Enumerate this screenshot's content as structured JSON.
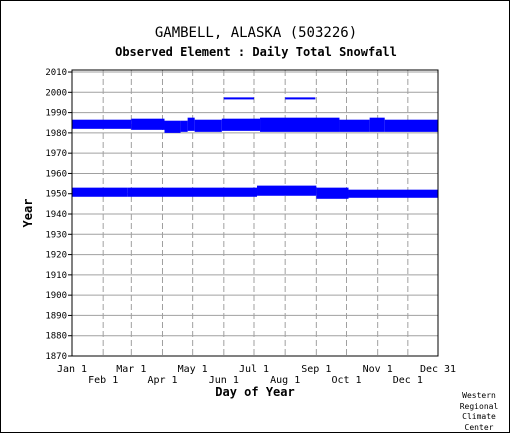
{
  "chart_data": {
    "type": "bar",
    "title": "GAMBELL, ALASKA   (503226)",
    "subtitle": "Observed Element : Daily Total Snowfall",
    "xlabel": "Day of Year",
    "ylabel": "Year",
    "xlim": [
      1,
      365
    ],
    "ylim": [
      1870,
      2011
    ],
    "x_ticks": [
      {
        "label": "Jan 1",
        "day": 1,
        "row": 0
      },
      {
        "label": "Feb 1",
        "day": 32,
        "row": 1
      },
      {
        "label": "Mar 1",
        "day": 60,
        "row": 0
      },
      {
        "label": "Apr 1",
        "day": 91,
        "row": 1
      },
      {
        "label": "May 1",
        "day": 121,
        "row": 0
      },
      {
        "label": "Jun 1",
        "day": 152,
        "row": 1
      },
      {
        "label": "Jul 1",
        "day": 182,
        "row": 0
      },
      {
        "label": "Aug 1",
        "day": 213,
        "row": 1
      },
      {
        "label": "Sep 1",
        "day": 244,
        "row": 0
      },
      {
        "label": "Oct 1",
        "day": 274,
        "row": 1
      },
      {
        "label": "Nov 1",
        "day": 305,
        "row": 0
      },
      {
        "label": "Dec 1",
        "day": 335,
        "row": 1
      },
      {
        "label": "Dec 31",
        "day": 365,
        "row": 0
      }
    ],
    "y_ticks": [
      1870,
      1880,
      1890,
      1900,
      1910,
      1920,
      1930,
      1940,
      1950,
      1960,
      1970,
      1980,
      1990,
      2000,
      2010
    ],
    "grid": true,
    "color": "#0000ff",
    "series": [
      {
        "segments": [
          {
            "day_start": 1,
            "day_end": 60,
            "year_start": 1982.0,
            "year_end": 1986.5
          },
          {
            "day_start": 60,
            "day_end": 93,
            "year_start": 1981.5,
            "year_end": 1987.0
          },
          {
            "day_start": 93,
            "day_end": 109,
            "year_start": 1980.0,
            "year_end": 1986.0
          },
          {
            "day_start": 109,
            "day_end": 116,
            "year_start": 1980.5,
            "year_end": 1986.0
          },
          {
            "day_start": 116,
            "day_end": 123,
            "year_start": 1981.0,
            "year_end": 1987.5
          },
          {
            "day_start": 123,
            "day_end": 150,
            "year_start": 1980.5,
            "year_end": 1986.5
          },
          {
            "day_start": 150,
            "day_end": 188,
            "year_start": 1981.0,
            "year_end": 1987.0
          },
          {
            "day_start": 188,
            "day_end": 267,
            "year_start": 1980.5,
            "year_end": 1987.5
          },
          {
            "day_start": 267,
            "day_end": 297,
            "year_start": 1980.5,
            "year_end": 1986.5
          },
          {
            "day_start": 297,
            "day_end": 312,
            "year_start": 1980.5,
            "year_end": 1987.5
          },
          {
            "day_start": 312,
            "day_end": 365,
            "year_start": 1980.5,
            "year_end": 1986.5
          },
          {
            "day_start": 152,
            "day_end": 182,
            "year_start": 1996.5,
            "year_end": 1997.5
          },
          {
            "day_start": 213,
            "day_end": 243,
            "year_start": 1996.5,
            "year_end": 1997.5
          },
          {
            "day_start": 1,
            "day_end": 56,
            "year_start": 1948.5,
            "year_end": 1953.0
          },
          {
            "day_start": 56,
            "day_end": 185,
            "year_start": 1948.5,
            "year_end": 1953.0
          },
          {
            "day_start": 185,
            "day_end": 244,
            "year_start": 1949.0,
            "year_end": 1954.0
          },
          {
            "day_start": 244,
            "day_end": 276,
            "year_start": 1947.5,
            "year_end": 1953.0
          },
          {
            "day_start": 276,
            "day_end": 365,
            "year_start": 1948.0,
            "year_end": 1952.0
          }
        ]
      }
    ]
  },
  "footer": {
    "credit_lines": [
      "Western",
      "Regional",
      "Climate",
      "Center"
    ]
  }
}
